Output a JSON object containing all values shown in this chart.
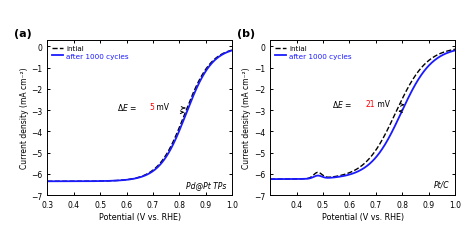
{
  "panel_a_label": "(a)",
  "panel_b_label": "(b)",
  "panel_a_annotation": "Pd@Pt TPs",
  "panel_b_annotation": "Pt/C",
  "legend_initial": "intial",
  "legend_after": "after 1000 cycles",
  "xlabel": "Potential (V vs. RHE)",
  "ylabel": "Current density (mA cm⁻²)",
  "xlim_a": [
    0.3,
    1.0
  ],
  "xlim_b": [
    0.3,
    1.0
  ],
  "ylim": [
    -7,
    0.3
  ],
  "yticks": [
    0,
    -1,
    -2,
    -3,
    -4,
    -5,
    -6,
    -7
  ],
  "xticks_a": [
    0.3,
    0.4,
    0.5,
    0.6,
    0.7,
    0.8,
    0.9,
    1.0
  ],
  "xticks_b": [
    0.4,
    0.5,
    0.6,
    0.7,
    0.8,
    0.9,
    1.0
  ],
  "color_initial": "#000000",
  "color_after": "#1a1aff",
  "bg_color": "#ffffff",
  "fig_bg_color": "#ffffff"
}
